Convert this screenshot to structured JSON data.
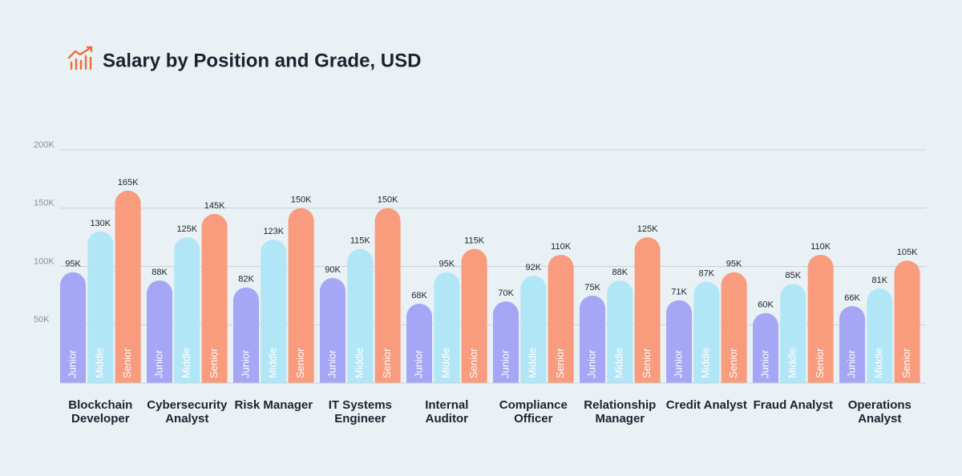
{
  "chart_data": {
    "type": "bar",
    "title": "Salary by Position and Grade, USD",
    "categories": [
      "Blockchain Developer",
      "Cybersecurity Analyst",
      "Risk Manager",
      "IT Systems Engineer",
      "Internal Auditor",
      "Compliance Officer",
      "Relationship Manager",
      "Credit Analyst",
      "Fraud Analyst",
      "Operations Analyst"
    ],
    "series": [
      {
        "name": "Junior",
        "color": "#a5a6f6",
        "values": [
          95000,
          88000,
          82000,
          90000,
          68000,
          70000,
          75000,
          71000,
          60000,
          66000
        ],
        "value_labels": [
          "95K",
          "88K",
          "82K",
          "90K",
          "68K",
          "70K",
          "75K",
          "71K",
          "60K",
          "66K"
        ]
      },
      {
        "name": "Middle",
        "color": "#b1e6f7",
        "values": [
          130000,
          125000,
          123000,
          115000,
          95000,
          92000,
          88000,
          87000,
          85000,
          81000
        ],
        "value_labels": [
          "130K",
          "125K",
          "123K",
          "115K",
          "95K",
          "92K",
          "88K",
          "87K",
          "85K",
          "81K"
        ]
      },
      {
        "name": "Senior",
        "color": "#f99b7d",
        "values": [
          165000,
          145000,
          150000,
          150000,
          115000,
          110000,
          125000,
          95000,
          110000,
          105000
        ],
        "value_labels": [
          "165K",
          "145K",
          "150K",
          "150K",
          "115K",
          "110K",
          "125K",
          "95K",
          "110K",
          "105K"
        ]
      }
    ],
    "ylim": [
      0,
      200000
    ],
    "yticks": [
      {
        "value": 50000,
        "label": "50K"
      },
      {
        "value": 100000,
        "label": "100K"
      },
      {
        "value": 150000,
        "label": "150K"
      },
      {
        "value": 200000,
        "label": "200K"
      }
    ],
    "grid": true
  }
}
